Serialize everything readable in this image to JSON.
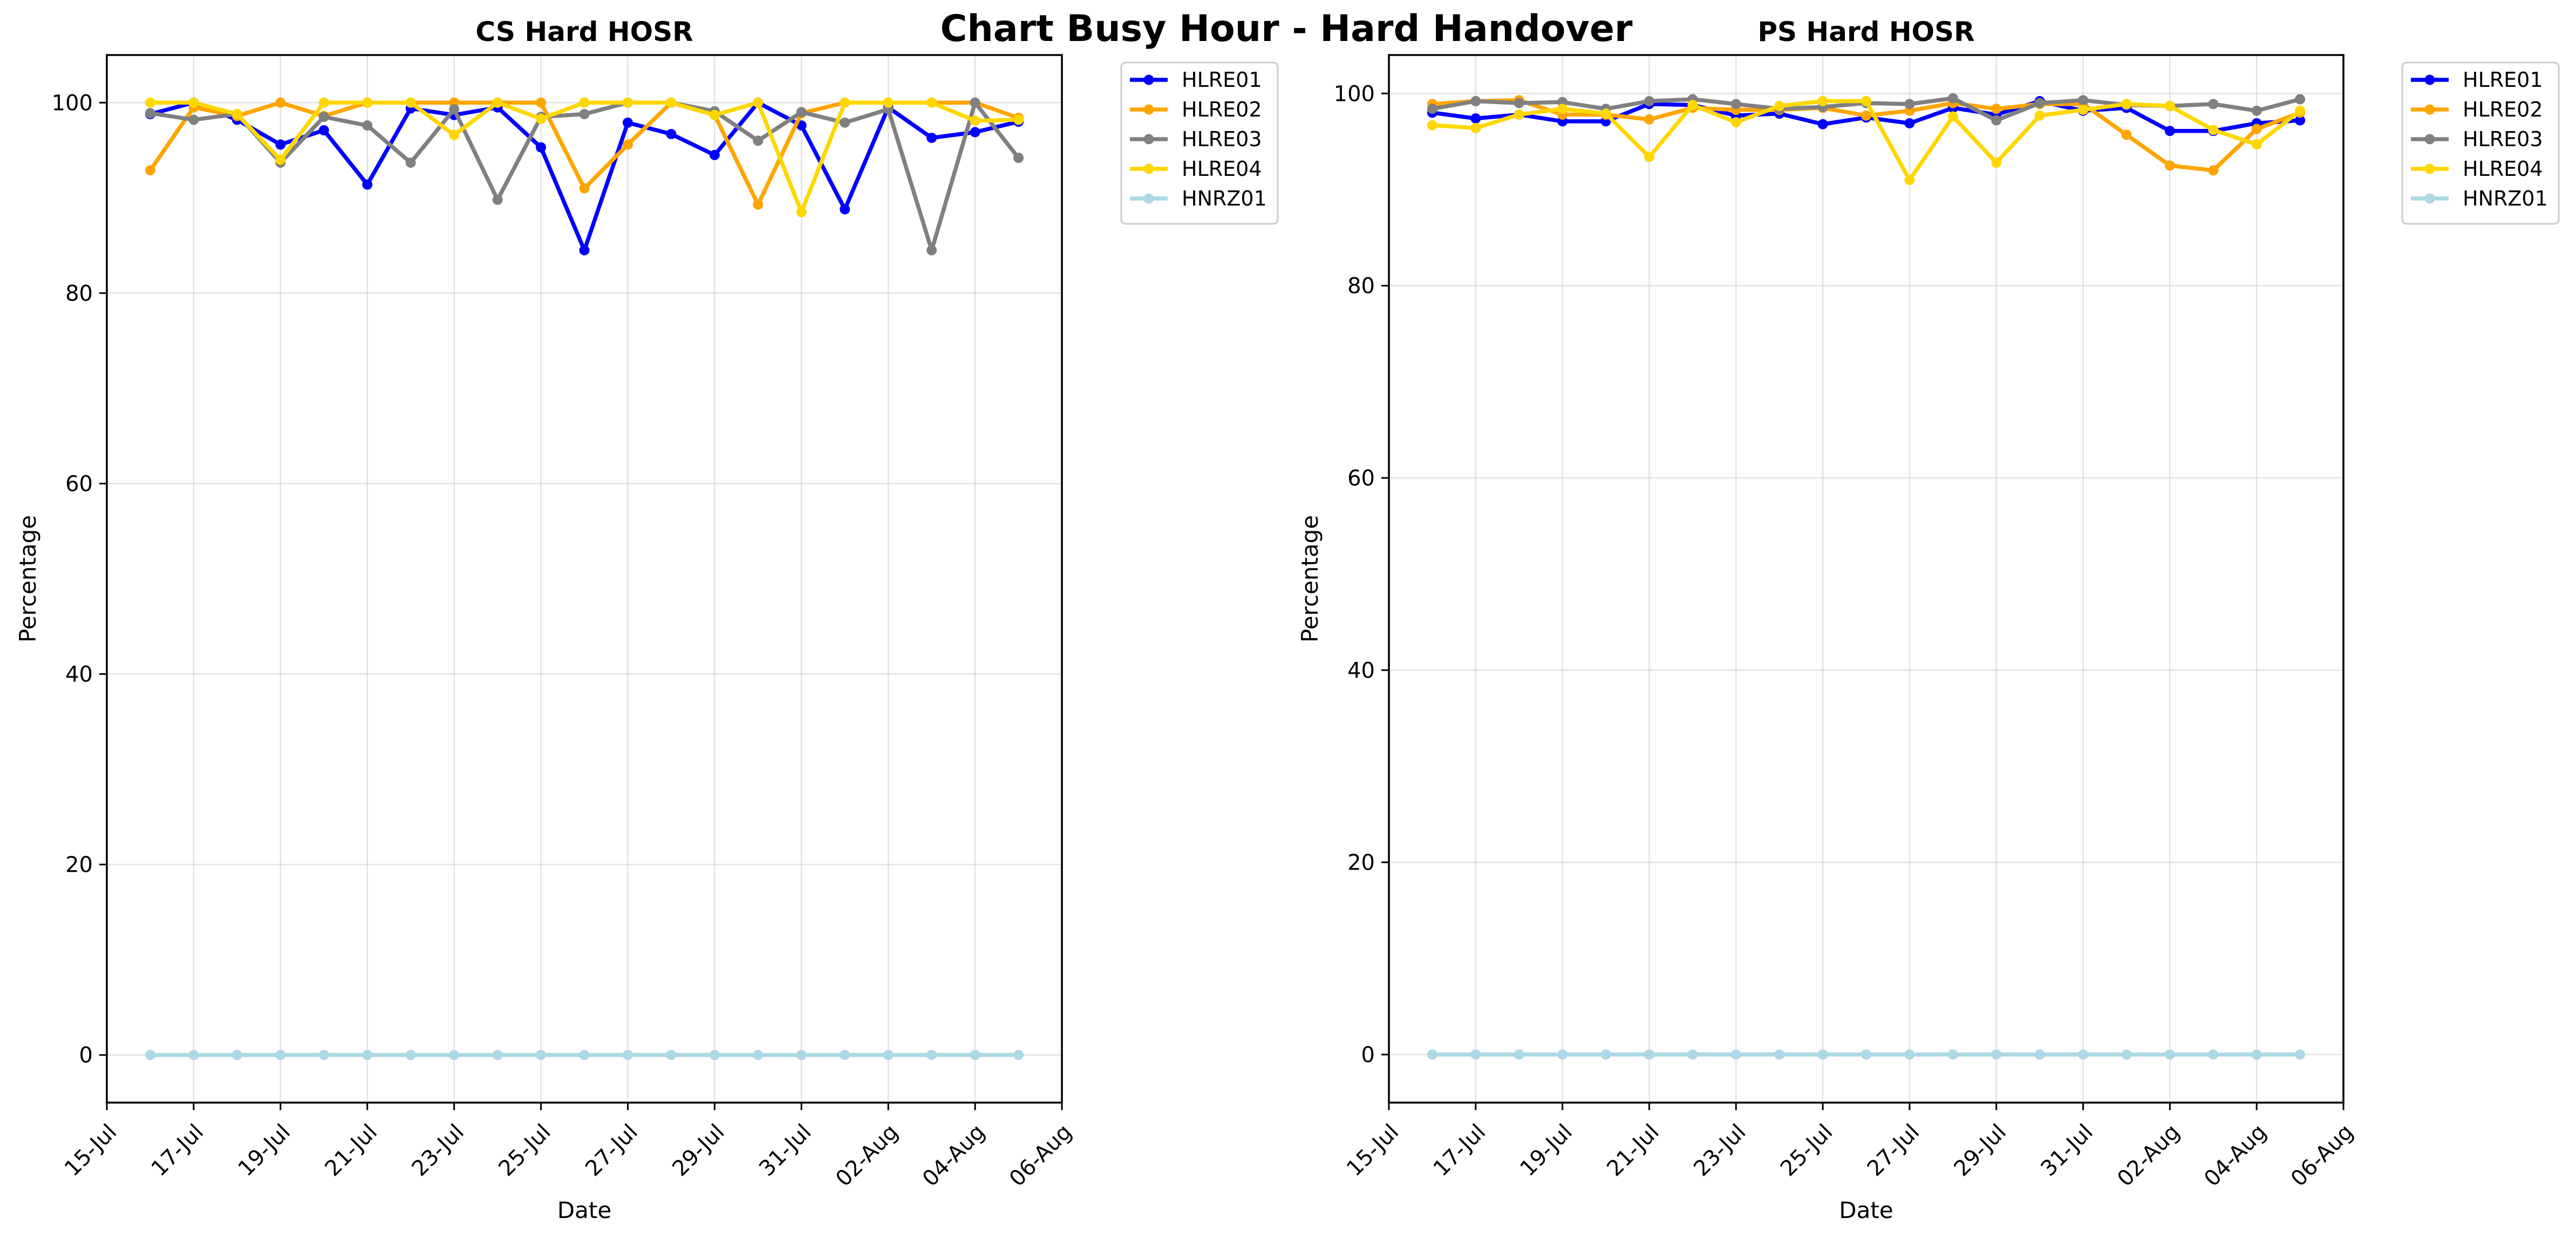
{
  "chart_data": {
    "title": "Chart Busy Hour - Hard Handover",
    "x_tick_labels": [
      "15-Jul",
      "17-Jul",
      "19-Jul",
      "21-Jul",
      "23-Jul",
      "25-Jul",
      "27-Jul",
      "29-Jul",
      "31-Jul",
      "02-Aug",
      "04-Aug",
      "06-Aug"
    ],
    "x_start": "2024-07-15",
    "x_end": "2024-08-06",
    "dates": [
      "16-Jul",
      "17-Jul",
      "18-Jul",
      "19-Jul",
      "20-Jul",
      "21-Jul",
      "22-Jul",
      "23-Jul",
      "24-Jul",
      "25-Jul",
      "26-Jul",
      "27-Jul",
      "28-Jul",
      "29-Jul",
      "30-Jul",
      "31-Jul",
      "01-Aug",
      "02-Aug",
      "03-Aug",
      "04-Aug",
      "05-Aug"
    ],
    "charts": [
      {
        "type": "line",
        "title": "CS Hard HOSR",
        "xlabel": "Date",
        "ylabel": "Percentage",
        "ylim": [
          -5,
          105
        ],
        "yticks": [
          0,
          20,
          40,
          60,
          80,
          100
        ],
        "grid": true,
        "legend_position": "outside-top-right",
        "series": [
          {
            "name": "HLRE01",
            "color": "#0000ff",
            "values": [
              98.8,
              100,
              98.2,
              95.6,
              97.1,
              91.4,
              99.4,
              98.7,
              99.5,
              95.3,
              84.5,
              97.9,
              96.7,
              94.5,
              100,
              97.6,
              88.8,
              99.5,
              96.3,
              96.9,
              98.0
            ]
          },
          {
            "name": "HLRE02",
            "color": "#ffa500",
            "values": [
              92.9,
              99.5,
              98.6,
              100,
              98.6,
              100,
              100,
              100,
              100,
              100,
              91.0,
              95.6,
              100,
              98.7,
              89.3,
              98.9,
              100,
              100,
              100,
              100,
              98.4
            ]
          },
          {
            "name": "HLRE03",
            "color": "#808080",
            "values": [
              98.9,
              98.2,
              98.8,
              93.7,
              98.5,
              97.6,
              93.7,
              99.3,
              89.8,
              98.5,
              98.8,
              100,
              100,
              99.1,
              96.0,
              99.0,
              97.9,
              99.3,
              84.5,
              100,
              94.2
            ]
          },
          {
            "name": "HLRE04",
            "color": "#ffd700",
            "values": [
              100,
              100,
              98.8,
              94.0,
              100,
              100,
              100,
              96.6,
              100,
              98.3,
              100,
              100,
              100,
              98.7,
              100,
              88.5,
              100,
              100,
              100,
              98.1,
              98.2
            ]
          },
          {
            "name": "HNRZ01",
            "color": "#add8e6",
            "values": [
              0,
              0,
              0,
              0,
              0,
              0,
              0,
              0,
              0,
              0,
              0,
              0,
              0,
              0,
              0,
              0,
              0,
              0,
              0,
              0,
              0
            ]
          }
        ]
      },
      {
        "type": "line",
        "title": "PS Hard HOSR",
        "xlabel": "Date",
        "ylabel": "Percentage",
        "ylim": [
          -5,
          104
        ],
        "yticks": [
          0,
          20,
          40,
          60,
          80,
          100
        ],
        "grid": true,
        "legend_position": "outside-top-right",
        "series": [
          {
            "name": "HLRE01",
            "color": "#0000ff",
            "values": [
              98.0,
              97.4,
              97.8,
              97.1,
              97.1,
              98.9,
              98.8,
              97.7,
              97.9,
              96.8,
              97.5,
              96.9,
              98.5,
              97.8,
              99.2,
              98.2,
              98.5,
              96.1,
              96.1,
              96.9,
              97.2
            ]
          },
          {
            "name": "HLRE02",
            "color": "#ffa500",
            "values": [
              98.9,
              99.2,
              99.3,
              97.8,
              97.8,
              97.3,
              98.5,
              98.3,
              98.3,
              98.5,
              97.7,
              98.2,
              99.0,
              98.4,
              98.9,
              98.9,
              95.7,
              92.5,
              92.0,
              96.3,
              98.0
            ]
          },
          {
            "name": "HLRE03",
            "color": "#808080",
            "values": [
              98.4,
              99.2,
              99.0,
              99.1,
              98.4,
              99.2,
              99.4,
              98.9,
              98.4,
              98.6,
              99.0,
              98.9,
              99.5,
              97.2,
              99.0,
              99.3,
              98.8,
              98.7,
              98.9,
              98.2,
              99.4
            ]
          },
          {
            "name": "HLRE04",
            "color": "#ffd700",
            "values": [
              96.7,
              96.4,
              97.8,
              98.4,
              97.9,
              93.4,
              98.8,
              97.0,
              98.7,
              99.2,
              99.2,
              91.0,
              97.6,
              92.8,
              97.7,
              98.3,
              98.9,
              98.7,
              96.2,
              94.7,
              98.2
            ]
          },
          {
            "name": "HNRZ01",
            "color": "#add8e6",
            "values": [
              0,
              0,
              0,
              0,
              0,
              0,
              0,
              0,
              0,
              0,
              0,
              0,
              0,
              0,
              0,
              0,
              0,
              0,
              0,
              0,
              0
            ]
          }
        ]
      }
    ]
  }
}
